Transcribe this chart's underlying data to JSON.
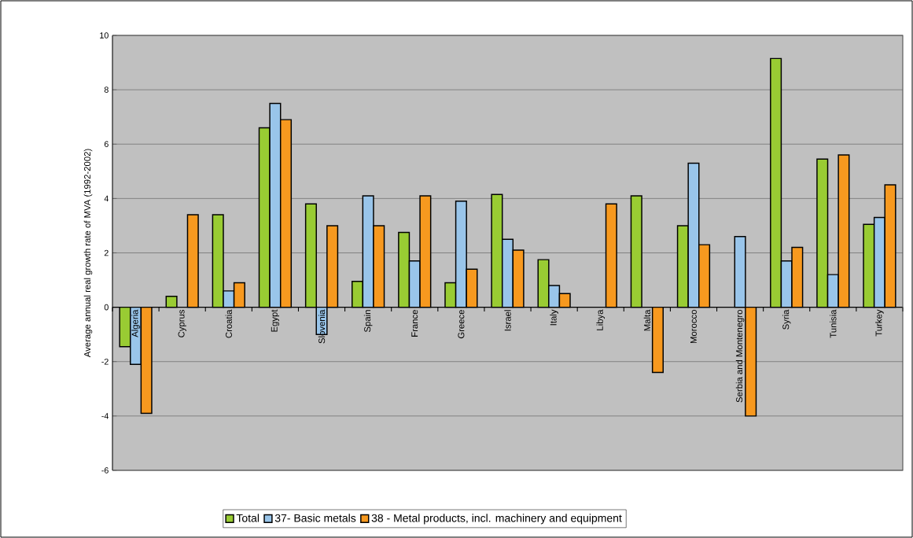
{
  "chart_data": {
    "type": "bar",
    "ylabel": "Average annual real growth rate of MVA (1992-2002)",
    "categories": [
      "Algeria",
      "Cyprus",
      "Croatia",
      "Egypt",
      "Slovenia",
      "Spain",
      "France",
      "Greece",
      "Israel",
      "Italy",
      "Libya",
      "Malta",
      "Morocco",
      "Serbia and Montenegro",
      "Syria",
      "Tunisia",
      "Turkey"
    ],
    "series": [
      {
        "name": "Total",
        "color": "#99cc33",
        "values": [
          -1.45,
          0.4,
          3.4,
          6.6,
          3.8,
          0.95,
          2.75,
          0.9,
          4.15,
          1.75,
          null,
          4.1,
          3.0,
          null,
          9.15,
          5.45,
          3.05
        ]
      },
      {
        "name": "37- Basic metals",
        "color": "#99c5ea",
        "values": [
          -2.1,
          null,
          0.6,
          7.5,
          -1.0,
          4.1,
          1.7,
          3.9,
          2.5,
          0.8,
          null,
          null,
          5.3,
          2.6,
          1.7,
          1.2,
          3.3
        ]
      },
      {
        "name": "38 - Metal products, incl. machinery and equipment",
        "color": "#f7991f",
        "values": [
          -3.9,
          3.4,
          0.9,
          6.9,
          3.0,
          3.0,
          4.1,
          1.4,
          2.1,
          0.5,
          3.8,
          -2.4,
          2.3,
          -4.0,
          2.2,
          5.6,
          4.5
        ]
      }
    ],
    "ylim": [
      -6,
      10
    ],
    "yticks": [
      -6,
      -4,
      -2,
      0,
      2,
      4,
      6,
      8,
      10
    ],
    "grid": "y",
    "legend": "bottom"
  }
}
